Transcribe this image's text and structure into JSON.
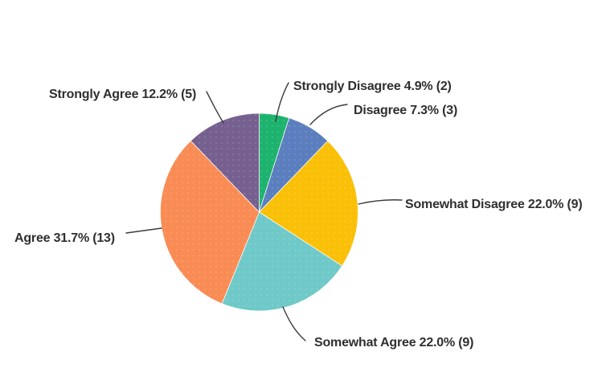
{
  "chart_data": {
    "type": "pie",
    "title": "",
    "categories": [
      "Strongly Disagree",
      "Disagree",
      "Somewhat Disagree",
      "Somewhat Agree",
      "Agree",
      "Strongly Agree"
    ],
    "values": [
      4.9,
      7.3,
      22.0,
      22.0,
      31.7,
      12.2
    ],
    "counts": [
      2,
      3,
      9,
      9,
      13,
      5
    ],
    "slices": [
      {
        "id": "strongly-disagree",
        "name": "Strongly Disagree",
        "pct": 4.9,
        "count": 2,
        "color": "#1db36e",
        "label": "Strongly Disagree 4.9% (2)"
      },
      {
        "id": "disagree",
        "name": "Disagree",
        "pct": 7.3,
        "count": 3,
        "color": "#5b7fbe",
        "label": "Disagree 7.3% (3)"
      },
      {
        "id": "somewhat-disagree",
        "name": "Somewhat Disagree",
        "pct": 22.0,
        "count": 9,
        "color": "#fac008",
        "label": "Somewhat Disagree 22.0% (9)"
      },
      {
        "id": "somewhat-agree",
        "name": "Somewhat Agree",
        "pct": 22.0,
        "count": 9,
        "color": "#6fc9c8",
        "label": "Somewhat Agree 22.0% (9)"
      },
      {
        "id": "agree",
        "name": "Agree",
        "pct": 31.7,
        "count": 13,
        "color": "#f98c55",
        "label": "Agree 31.7% (13)"
      },
      {
        "id": "strongly-agree",
        "name": "Strongly Agree",
        "pct": 12.2,
        "count": 5,
        "color": "#76608f",
        "label": "Strongly Agree 12.2% (5)"
      }
    ],
    "layout": {
      "start_angle_deg": 0,
      "direction": "clockwise",
      "legend": "none",
      "label_style": "outside-with-leader-lines"
    },
    "colors": {
      "background": "#ffffff",
      "label_text": "#2f2f2f",
      "leader_line": "#3c3c3c"
    }
  }
}
